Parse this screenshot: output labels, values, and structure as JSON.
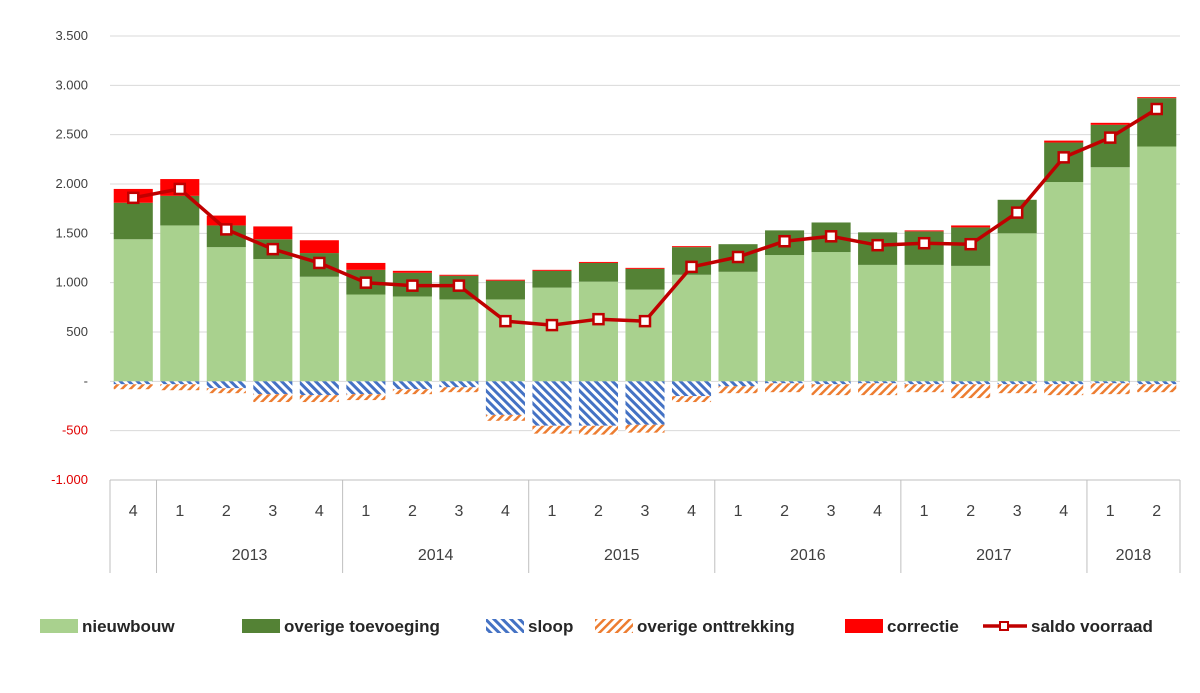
{
  "chart_data": {
    "type": "bar",
    "stacked": true,
    "title": "",
    "xlabel": "",
    "ylabel": "",
    "ylim": [
      -1000,
      3500
    ],
    "y_ticks": [
      3500,
      3000,
      2500,
      2000,
      1500,
      1000,
      500,
      0,
      -500,
      -1000
    ],
    "y_tick_labels": [
      "3.500",
      "3.000",
      "2.500",
      "2.000",
      "1.500",
      "1.000",
      "500",
      "-",
      "-500",
      "-1.000"
    ],
    "negative_tick_color": "#e00000",
    "grid": true,
    "legend_position": "bottom",
    "categories": [
      "4",
      "1",
      "2",
      "3",
      "4",
      "1",
      "2",
      "3",
      "4",
      "1",
      "2",
      "3",
      "4",
      "1",
      "2",
      "3",
      "4",
      "1",
      "2",
      "3",
      "4",
      "1",
      "2"
    ],
    "groups": [
      {
        "label": "",
        "count": 1
      },
      {
        "label": "2013",
        "count": 4
      },
      {
        "label": "2014",
        "count": 4
      },
      {
        "label": "2015",
        "count": 4
      },
      {
        "label": "2016",
        "count": 4
      },
      {
        "label": "2017",
        "count": 4
      },
      {
        "label": "2018",
        "count": 2
      }
    ],
    "series": [
      {
        "name": "nieuwbouw",
        "kind": "bar",
        "color": "#a9d18e",
        "pattern": "solid",
        "values": [
          1440,
          1580,
          1360,
          1240,
          1060,
          880,
          860,
          830,
          830,
          950,
          1010,
          930,
          1080,
          1110,
          1280,
          1310,
          1180,
          1180,
          1170,
          1500,
          2020,
          2170,
          2380
        ]
      },
      {
        "name": "overige toevoeging",
        "kind": "bar",
        "color": "#548235",
        "pattern": "solid",
        "values": [
          370,
          300,
          220,
          200,
          240,
          250,
          240,
          240,
          190,
          170,
          190,
          210,
          280,
          280,
          250,
          300,
          330,
          340,
          390,
          340,
          400,
          430,
          490
        ]
      },
      {
        "name": "sloop",
        "kind": "bar",
        "color": "#4472c4",
        "pattern": "hatch-blue",
        "values": [
          -30,
          -30,
          -70,
          -130,
          -140,
          -130,
          -80,
          -60,
          -340,
          -450,
          -450,
          -440,
          -150,
          -50,
          -20,
          -30,
          -20,
          -30,
          -30,
          -30,
          -30,
          -20,
          -30
        ]
      },
      {
        "name": "overige onttrekking",
        "kind": "bar",
        "color": "#ed7d31",
        "pattern": "hatch-orange",
        "values": [
          -50,
          -60,
          -50,
          -80,
          -70,
          -60,
          -50,
          -50,
          -60,
          -80,
          -90,
          -80,
          -60,
          -70,
          -90,
          -110,
          -120,
          -80,
          -140,
          -90,
          -110,
          -110,
          -80
        ]
      },
      {
        "name": "correctie",
        "kind": "bar",
        "color": "#ff0000",
        "pattern": "solid",
        "values": [
          140,
          170,
          100,
          130,
          130,
          70,
          20,
          10,
          10,
          10,
          10,
          10,
          10,
          0,
          0,
          0,
          0,
          10,
          20,
          0,
          20,
          20,
          10
        ]
      },
      {
        "name": "saldo voorraad",
        "kind": "line",
        "color": "#c00000",
        "values": [
          1860,
          1950,
          1540,
          1340,
          1200,
          1000,
          970,
          970,
          610,
          570,
          630,
          610,
          1160,
          1260,
          1420,
          1470,
          1380,
          1400,
          1390,
          1710,
          2270,
          2470,
          2760
        ]
      }
    ]
  }
}
